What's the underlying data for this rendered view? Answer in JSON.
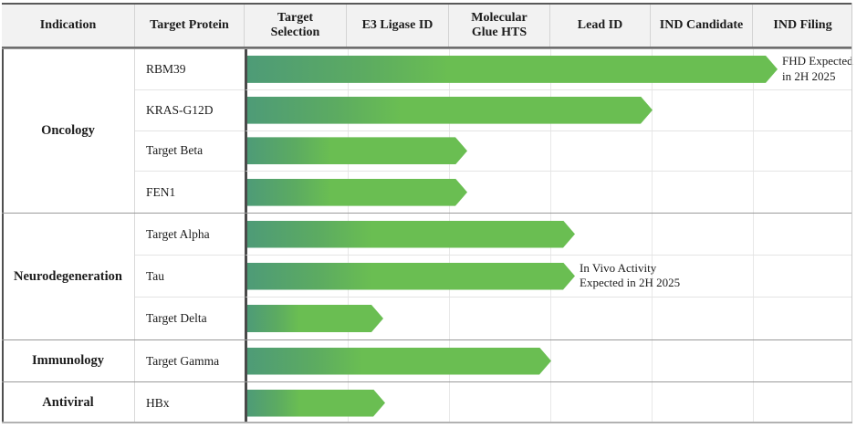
{
  "header": {
    "columns": [
      "Indication",
      "Target Protein",
      "Target\nSelection",
      "E3 Ligase ID",
      "Molecular\nGlue HTS",
      "Lead ID",
      "IND Candidate",
      "IND Filing"
    ]
  },
  "chart_data": {
    "type": "bar",
    "orientation": "horizontal",
    "stages": [
      "Target Selection",
      "E3 Ligase ID",
      "Molecular Glue HTS",
      "Lead ID",
      "IND Candidate",
      "IND Filing"
    ],
    "stage_axis_note": "end_stage is measured in stage-column units from the start of the Target Selection column; each bar is a gradient arrow showing pipeline progress",
    "bar_colors": {
      "start": "#4E9B77",
      "end": "#6ABE52"
    },
    "gridline_color": "#e8e8e8",
    "groups": [
      {
        "indication": "Oncology",
        "rows": [
          {
            "target": "RBM39",
            "end_stage": 5.23,
            "stage_reached": "IND Filing",
            "annotation": "FHD Expected\nin 2H 2025"
          },
          {
            "target": "KRAS-G12D",
            "end_stage": 4.0,
            "stage_reached": "Lead ID",
            "annotation": ""
          },
          {
            "target": "Target Beta",
            "end_stage": 2.17,
            "stage_reached": "Molecular Glue HTS",
            "annotation": ""
          },
          {
            "target": "FEN1",
            "end_stage": 2.17,
            "stage_reached": "Molecular Glue HTS",
            "annotation": ""
          }
        ]
      },
      {
        "indication": "Neurodegeneration",
        "rows": [
          {
            "target": "Target Alpha",
            "end_stage": 3.23,
            "stage_reached": "Lead ID",
            "annotation": ""
          },
          {
            "target": "Tau",
            "end_stage": 3.23,
            "stage_reached": "Lead ID",
            "annotation": "In Vivo Activity\nExpected in 2H 2025"
          },
          {
            "target": "Target Delta",
            "end_stage": 1.34,
            "stage_reached": "E3 Ligase ID",
            "annotation": ""
          }
        ]
      },
      {
        "indication": "Immunology",
        "rows": [
          {
            "target": "Target Gamma",
            "end_stage": 3.0,
            "stage_reached": "Lead ID",
            "annotation": ""
          }
        ]
      },
      {
        "indication": "Antiviral",
        "rows": [
          {
            "target": "HBx",
            "end_stage": 1.36,
            "stage_reached": "E3 Ligase ID",
            "annotation": ""
          }
        ]
      }
    ]
  }
}
